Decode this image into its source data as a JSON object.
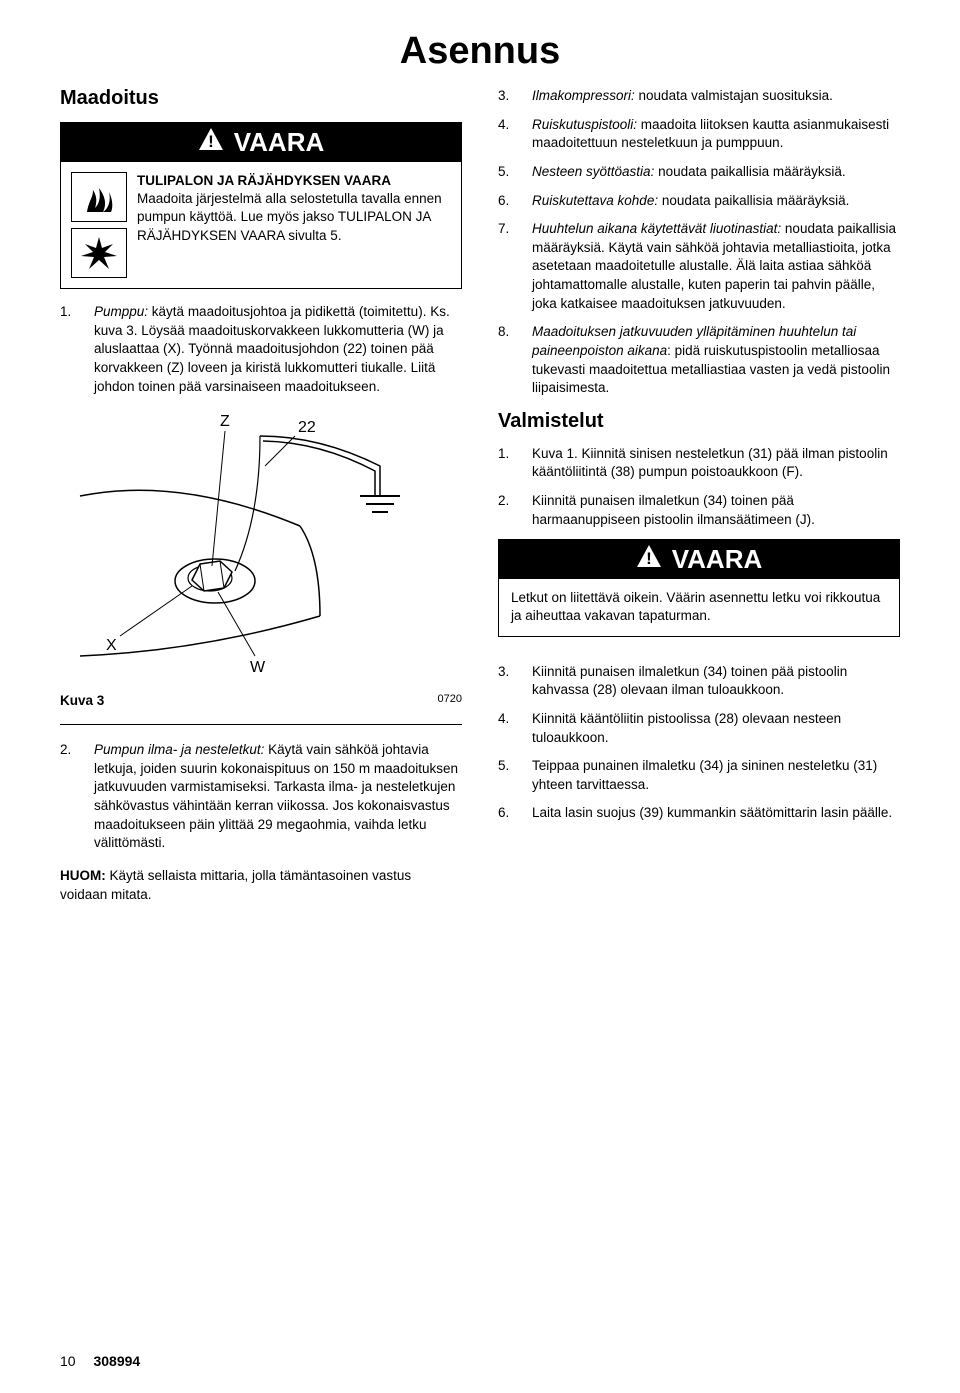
{
  "page_title": "Asennus",
  "left": {
    "heading": "Maadoitus",
    "warning": {
      "header": "VAARA",
      "title": "TULIPALON JA RÄJÄHDYKSEN VAARA",
      "body": "Maadoita järjestelmä alla selostetulla tavalla ennen pumpun käyttöä. Lue myös jakso TULIPALON JA RÄJÄHDYKSEN VAARA sivulta 5."
    },
    "item1": {
      "num": "1.",
      "lead": "Pumppu:",
      "text": " käytä maadoitusjohtoa ja pidikettä (toimitettu). Ks. kuva 3. Löysää maadoituskorvakkeen lukkomutteria (W) ja aluslaattaa (X). Työnnä maadoitusjohdon (22) toinen pää korvakkeen (Z) loveen ja kiristä lukkomutteri tiukalle. Liitä johdon toinen pää varsinaiseen maadoitukseen."
    },
    "fig": {
      "labels": {
        "Z": "Z",
        "n22": "22",
        "X": "X",
        "W": "W"
      },
      "caption": "Kuva 3",
      "id": "0720"
    },
    "item2": {
      "num": "2.",
      "lead": "Pumpun ilma- ja nesteletkut:",
      "text": " Käytä vain sähköä johtavia letkuja, joiden suurin kokonaispituus on 150 m maadoituksen jatkuvuuden varmistamiseksi. Tarkasta ilma- ja nesteletkujen sähkövastus vähintään kerran viikossa. Jos kokonaisvastus maadoitukseen päin ylittää 29 megaohmia, vaihda letku välittömästi."
    },
    "huom": {
      "label": "HUOM:",
      "text": " Käytä sellaista mittaria, jolla tämäntasoinen vastus voidaan mitata."
    }
  },
  "right": {
    "items_top": [
      {
        "num": "3.",
        "lead": "Ilmakompressori:",
        "text": " noudata valmistajan suosituksia."
      },
      {
        "num": "4.",
        "lead": "Ruiskutuspistooli:",
        "text": " maadoita liitoksen kautta asianmukaisesti maadoitettuun nesteletkuun ja pumppuun."
      },
      {
        "num": "5.",
        "lead": "Nesteen syöttöastia:",
        "text": " noudata paikallisia määräyksiä."
      },
      {
        "num": "6.",
        "lead": "Ruiskutettava kohde:",
        "text": " noudata paikallisia määräyksiä."
      },
      {
        "num": "7.",
        "lead": "Huuhtelun aikana käytettävät liuotinastiat:",
        "text": " noudata paikallisia määräyksiä. Käytä vain sähköä johtavia metalliastioita, jotka asetetaan maadoitetulle alustalle. Älä laita astiaa sähköä johtamattomalle alustalle, kuten paperin tai pahvin päälle, joka katkaisee maadoituksen jatkuvuuden."
      },
      {
        "num": "8.",
        "lead": "Maadoituksen jatkuvuuden ylläpitäminen huuhtelun tai paineenpoiston aikana",
        "text": ": pidä ruiskutuspistoolin metalliosaa tukevasti maadoitettua metalliastiaa vasten ja vedä pistoolin liipaisimesta.",
        "lead2": "metalliastiaa"
      }
    ],
    "heading2": "Valmistelut",
    "items_mid": [
      {
        "num": "1.",
        "text": "Kuva 1. Kiinnitä sinisen nesteletkun (31) pää ilman pistoolin kääntöliitintä (38) pumpun poistoaukkoon (F)."
      },
      {
        "num": "2.",
        "text": "Kiinnitä punaisen ilmaletkun (34) toinen pää harmaanuppiseen pistoolin ilmansäätimeen (J)."
      }
    ],
    "warning2": {
      "header": "VAARA",
      "body": "Letkut on liitettävä oikein. Väärin asennettu letku voi rikkoutua ja aiheuttaa vakavan tapaturman."
    },
    "items_bot": [
      {
        "num": "3.",
        "text": "Kiinnitä punaisen ilmaletkun (34) toinen pää pistoolin kahvassa (28) olevaan ilman tuloaukkoon."
      },
      {
        "num": "4.",
        "text": "Kiinnitä kääntöliitin pistoolissa (28) olevaan nesteen tuloaukkoon."
      },
      {
        "num": "5.",
        "text": "Teippaa punainen ilmaletku (34) ja sininen nesteletku (31) yhteen tarvittaessa."
      },
      {
        "num": "6.",
        "text": "Laita lasin suojus (39) kummankin säätömittarin lasin päälle."
      }
    ]
  },
  "footer": {
    "page": "10",
    "doc": "308994"
  }
}
